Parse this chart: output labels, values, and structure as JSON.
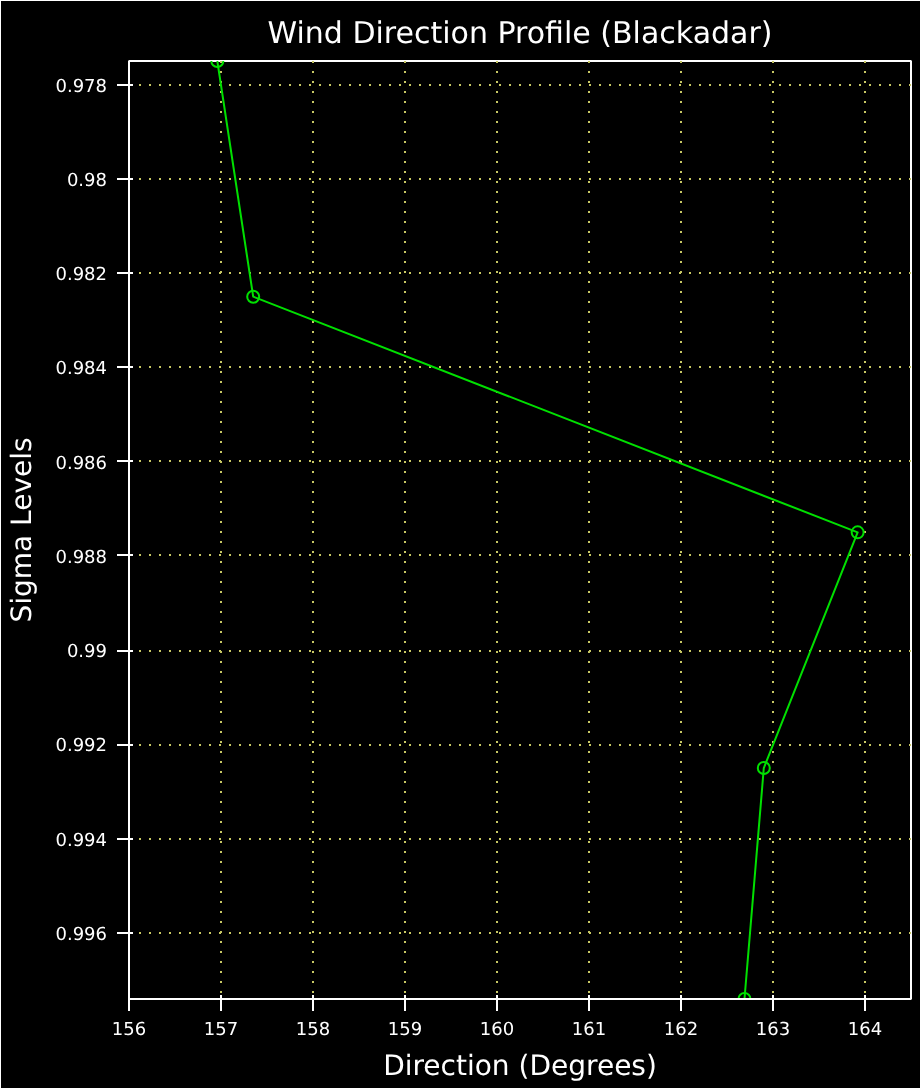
{
  "chart_data": {
    "type": "line",
    "title": "Wind Direction Profile (Blackadar)",
    "xlabel": "Direction (Degrees)",
    "ylabel": "Sigma Levels",
    "x": [
      156.96,
      157.35,
      163.92,
      162.9,
      162.69
    ],
    "series": [
      {
        "color": "#00e000",
        "values": [
          0.9775,
          0.9825,
          0.9875,
          0.9925,
          0.9974
        ]
      }
    ],
    "xlim": [
      156,
      164.5
    ],
    "xticks": [
      156,
      157,
      158,
      159,
      160,
      161,
      162,
      163,
      164
    ],
    "ylim": [
      0.9974,
      0.9775
    ],
    "yticks": [
      0.978,
      0.98,
      0.982,
      0.984,
      0.986,
      0.988,
      0.99,
      0.992,
      0.994,
      0.996
    ],
    "grid": true,
    "marker": "circle",
    "line_style": "solid"
  }
}
